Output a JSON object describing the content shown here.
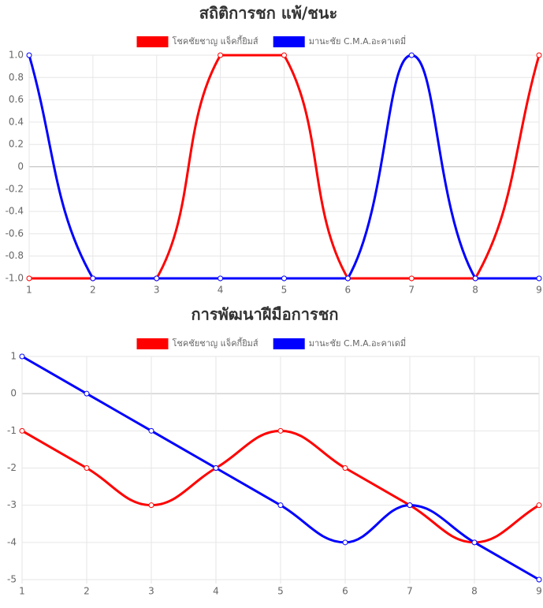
{
  "chart_data": [
    {
      "type": "line",
      "title": "สถิติการชก แพ้/ชนะ",
      "x": [
        1,
        2,
        3,
        4,
        5,
        6,
        7,
        8,
        9
      ],
      "xlim": [
        1,
        9
      ],
      "xticks": [
        1,
        2,
        3,
        4,
        5,
        6,
        7,
        8,
        9
      ],
      "ylim": [
        -1,
        1
      ],
      "yticks": [
        {
          "value": -1,
          "label": "-1.0"
        },
        -0.8,
        -0.6,
        -0.4,
        -0.2,
        0,
        0.2,
        0.4,
        0.6,
        0.8,
        {
          "value": 1,
          "label": "1.0"
        }
      ],
      "grid": true,
      "legend": "top",
      "series": [
        {
          "name": "โชคชัยชาญ แจ็คกี้ยิมส์",
          "color": "#ff0000",
          "values": [
            -1,
            -1,
            -1,
            1,
            1,
            -1,
            -1,
            -1,
            1
          ]
        },
        {
          "name": "มานะชัย C.M.A.อะคาเดมี่",
          "color": "#0000ff",
          "values": [
            1,
            -1,
            -1,
            -1,
            -1,
            -1,
            1,
            -1,
            -1
          ]
        }
      ]
    },
    {
      "type": "line",
      "title": "การพัฒนาฝีมือการชก",
      "x": [
        1,
        2,
        3,
        4,
        5,
        6,
        7,
        8,
        9
      ],
      "xlim": [
        1,
        9
      ],
      "xticks": [
        1,
        2,
        3,
        4,
        5,
        6,
        7,
        8,
        9
      ],
      "ylim": [
        -5,
        1
      ],
      "yticks": [
        -5,
        -4,
        -3,
        -2,
        -1,
        0,
        1
      ],
      "grid": true,
      "legend": "top",
      "series": [
        {
          "name": "โชคชัยชาญ แจ็คกี้ยิมส์",
          "color": "#ff0000",
          "values": [
            -1,
            -2,
            -3,
            -2,
            -1,
            -2,
            -3,
            -4,
            -3
          ]
        },
        {
          "name": "มานะชัย C.M.A.อะคาเดมี่",
          "color": "#0000ff",
          "values": [
            1,
            0,
            -1,
            -2,
            -3,
            -4,
            -3,
            -4,
            -5
          ]
        }
      ]
    }
  ]
}
